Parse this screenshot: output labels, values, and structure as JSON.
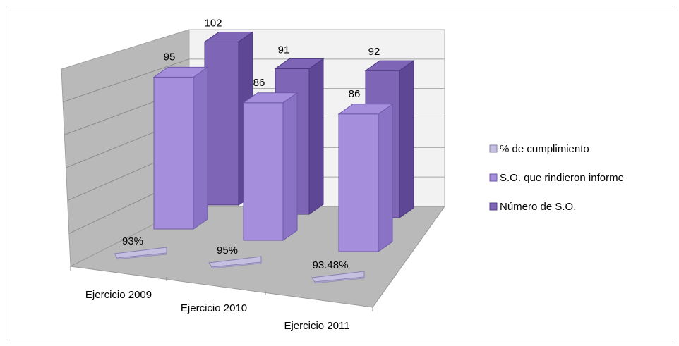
{
  "chart_data": {
    "type": "bar",
    "categories": [
      "Ejercicio 2009",
      "Ejercicio 2010",
      "Ejercicio 2011"
    ],
    "series": [
      {
        "name": "% de cumplimiento",
        "values": [
          0.93,
          0.95,
          0.9348
        ],
        "labels": [
          "93%",
          "95%",
          "93.48%"
        ],
        "color": "#c5bfe0"
      },
      {
        "name": "S.O. que rindieron informe",
        "values": [
          95,
          86,
          86
        ],
        "labels": [
          "95",
          "86",
          "86"
        ],
        "color": "#a58fdc"
      },
      {
        "name": "Número de S.O.",
        "values": [
          102,
          91,
          92
        ],
        "labels": [
          "102",
          "91",
          "92"
        ],
        "color": "#7e65b5"
      }
    ],
    "title": "",
    "xlabel": "",
    "ylabel": "",
    "ylim": [
      0,
      120
    ],
    "grid": true,
    "legend_position": "right",
    "view": "3d-column"
  }
}
